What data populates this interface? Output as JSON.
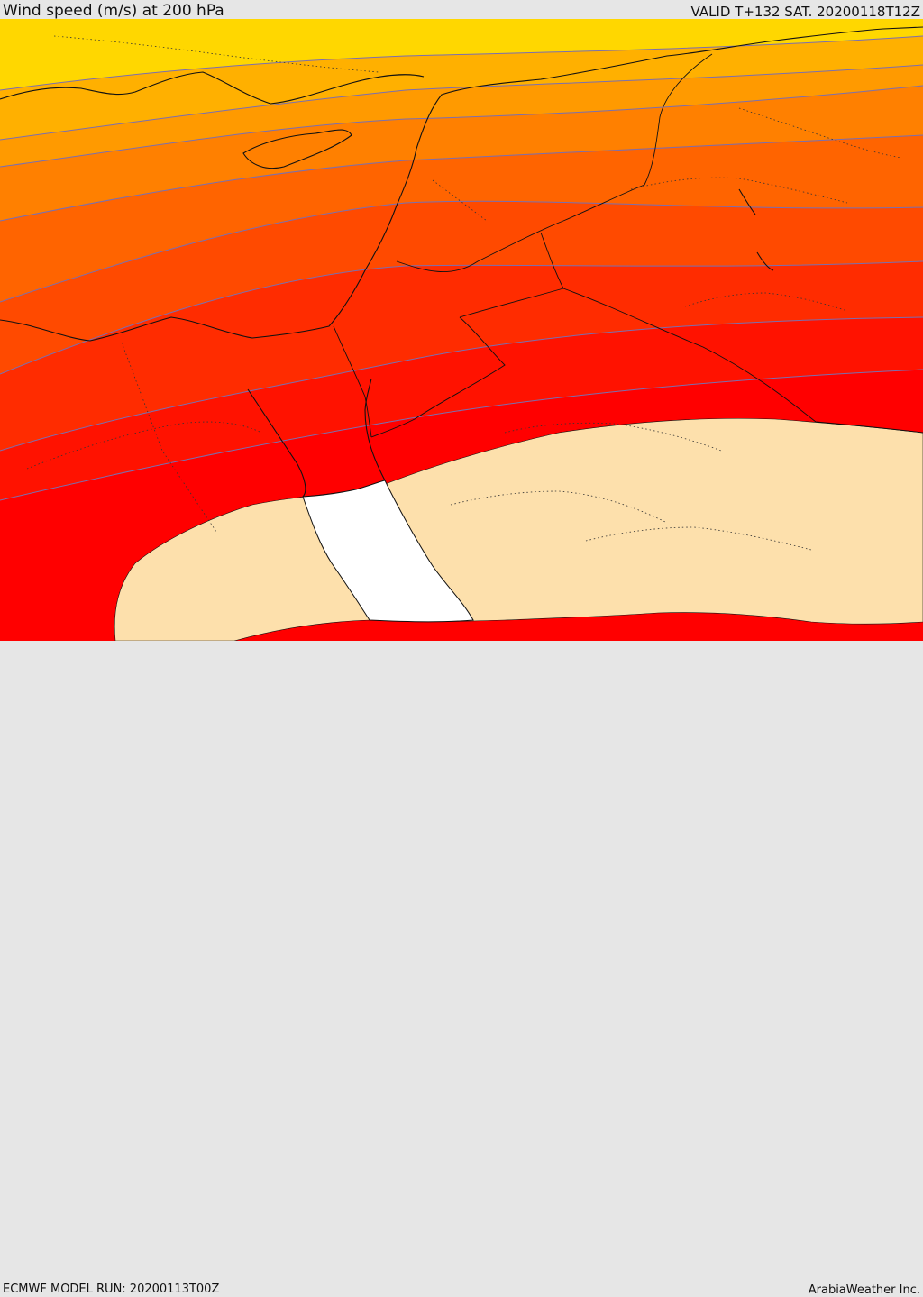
{
  "header": {
    "title": "Wind speed (m/s) at 200 hPa",
    "valid": "VALID T+132 SAT. 20200118T12Z"
  },
  "footer": {
    "model_run": "ECMWF MODEL RUN: 20200113T00Z",
    "credit": "ArabiaWeather Inc."
  },
  "map": {
    "variable": "wind speed",
    "level": "200 hPa",
    "units": "m/s",
    "band_colors": [
      "#ffd700",
      "#ffb000",
      "#ff9a00",
      "#ff8000",
      "#ff6400",
      "#ff4a00",
      "#ff2c00",
      "#ff1200",
      "#ff0000",
      "#fde0ac",
      "#ffffff"
    ],
    "contour_color": "#7a6fb0",
    "border_color": "#111111"
  }
}
